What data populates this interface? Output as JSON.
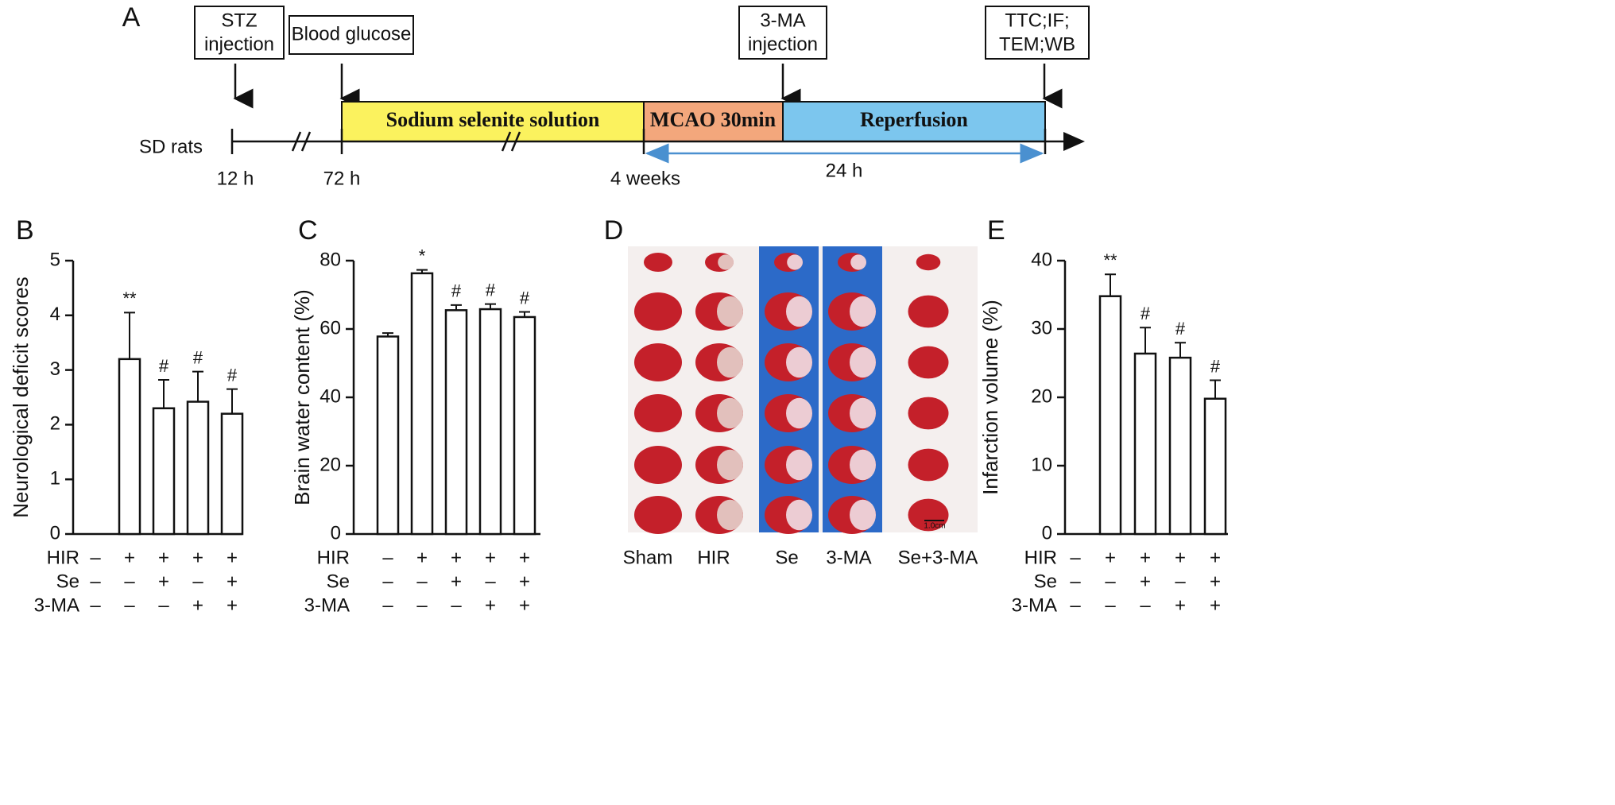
{
  "timeline": {
    "label": "A",
    "boxes": [
      [
        "STZ",
        "injection"
      ],
      [
        "Blood glucose"
      ],
      [
        "3-MA",
        "injection"
      ],
      [
        "TTC;IF;",
        "TEM;WB"
      ]
    ],
    "phases": [
      "Sodium selenite solution",
      "MCAO 30min",
      "Reperfusion"
    ],
    "subject": "SD rats",
    "times": [
      "12 h",
      "72 h",
      "4 weeks"
    ],
    "duration": "24 h"
  },
  "image_panel": {
    "label": "D",
    "groups": [
      "Sham",
      "HIR",
      "Se",
      "3-MA",
      "Se+3-MA"
    ],
    "scale_bar": "1.0cm"
  },
  "chart_data": [
    {
      "type": "bar",
      "label": "B",
      "ylabel": "Neurological deficit scores",
      "values": [
        0,
        3.2,
        2.3,
        2.42,
        2.2
      ],
      "errors": [
        null,
        0.85,
        0.52,
        0.55,
        0.45
      ],
      "annotations": [
        null,
        "**",
        "#",
        "#",
        "#"
      ],
      "conditions": [
        {
          "name": "HIR",
          "signs": [
            "–",
            "+",
            "+",
            "+",
            "+"
          ]
        },
        {
          "name": "Se",
          "signs": [
            "–",
            "–",
            "+",
            "–",
            "+"
          ]
        },
        {
          "name": "3-MA",
          "signs": [
            "–",
            "–",
            "–",
            "+",
            "+"
          ]
        }
      ],
      "ylim": [
        0,
        5
      ],
      "yticks": [
        0,
        1,
        2,
        3,
        4,
        5
      ],
      "color": "#ffffff"
    },
    {
      "type": "bar",
      "label": "C",
      "ylabel": "Brain water content (%)",
      "values": [
        57.8,
        76.3,
        65.5,
        65.8,
        63.5
      ],
      "errors": [
        1,
        1,
        1.5,
        1.5,
        1.5
      ],
      "annotations": [
        null,
        "*",
        "#",
        "#",
        "#"
      ],
      "conditions": [
        {
          "name": "HIR",
          "signs": [
            "–",
            "+",
            "+",
            "+",
            "+"
          ]
        },
        {
          "name": "Se",
          "signs": [
            "–",
            "–",
            "+",
            "–",
            "+"
          ]
        },
        {
          "name": "3-MA",
          "signs": [
            "–",
            "–",
            "–",
            "+",
            "+"
          ]
        }
      ],
      "ylim": [
        0,
        80
      ],
      "yticks": [
        0,
        20,
        40,
        60,
        80
      ],
      "color": "#ffffff"
    },
    {
      "type": "bar",
      "label": "E",
      "ylabel": "Infarction volume (%)",
      "values": [
        0,
        34.8,
        26.4,
        25.8,
        19.8
      ],
      "errors": [
        null,
        3.2,
        3.8,
        2.2,
        2.7
      ],
      "annotations": [
        null,
        "**",
        "#",
        "#",
        "#"
      ],
      "conditions": [
        {
          "name": "HIR",
          "signs": [
            "–",
            "+",
            "+",
            "+",
            "+"
          ]
        },
        {
          "name": "Se",
          "signs": [
            "–",
            "–",
            "+",
            "–",
            "+"
          ]
        },
        {
          "name": "3-MA",
          "signs": [
            "–",
            "–",
            "–",
            "+",
            "+"
          ]
        }
      ],
      "ylim": [
        0,
        40
      ],
      "yticks": [
        0,
        10,
        20,
        30,
        40
      ],
      "color": "#ffffff"
    }
  ]
}
